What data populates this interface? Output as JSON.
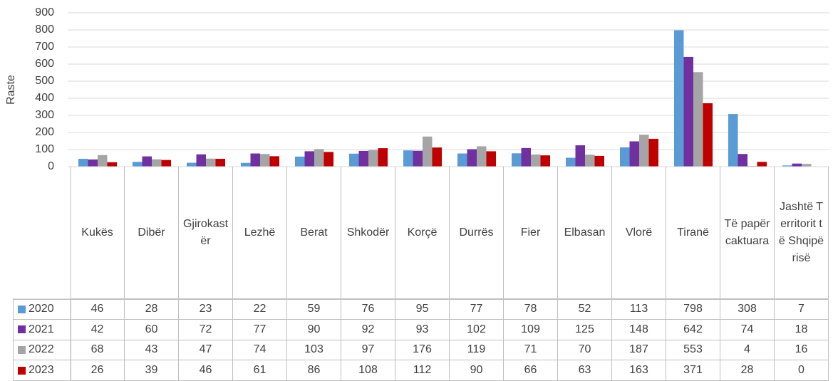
{
  "chart_data": {
    "type": "bar",
    "y_label": "Raste",
    "categories": [
      "Kukës",
      "Dibër",
      "Gjirokastër",
      "Lezhë",
      "Berat",
      "Shkodër",
      "Korçë",
      "Durrës",
      "Fier",
      "Elbasan",
      "Vlorë",
      "Tiranë",
      "Të papërcaktuara",
      "Jashtë Territorit të Shqipërisë"
    ],
    "series": [
      {
        "name": "2020",
        "color": "#5b9bd5",
        "values": [
          46,
          28,
          23,
          22,
          59,
          76,
          95,
          77,
          78,
          52,
          113,
          798,
          308,
          7
        ]
      },
      {
        "name": "2021",
        "color": "#7030a0",
        "values": [
          42,
          60,
          72,
          77,
          90,
          92,
          93,
          102,
          109,
          125,
          148,
          642,
          74,
          18
        ]
      },
      {
        "name": "2022",
        "color": "#a5a5a5",
        "values": [
          68,
          43,
          47,
          74,
          103,
          97,
          176,
          119,
          71,
          70,
          187,
          553,
          4,
          16
        ]
      },
      {
        "name": "2023",
        "color": "#c00000",
        "values": [
          26,
          39,
          46,
          61,
          86,
          108,
          112,
          90,
          66,
          63,
          163,
          371,
          28,
          0
        ]
      }
    ],
    "ylim": [
      0,
      900
    ],
    "yticks": [
      0,
      100,
      200,
      300,
      400,
      500,
      600,
      700,
      800,
      900
    ],
    "grid": true,
    "data_table": true
  }
}
